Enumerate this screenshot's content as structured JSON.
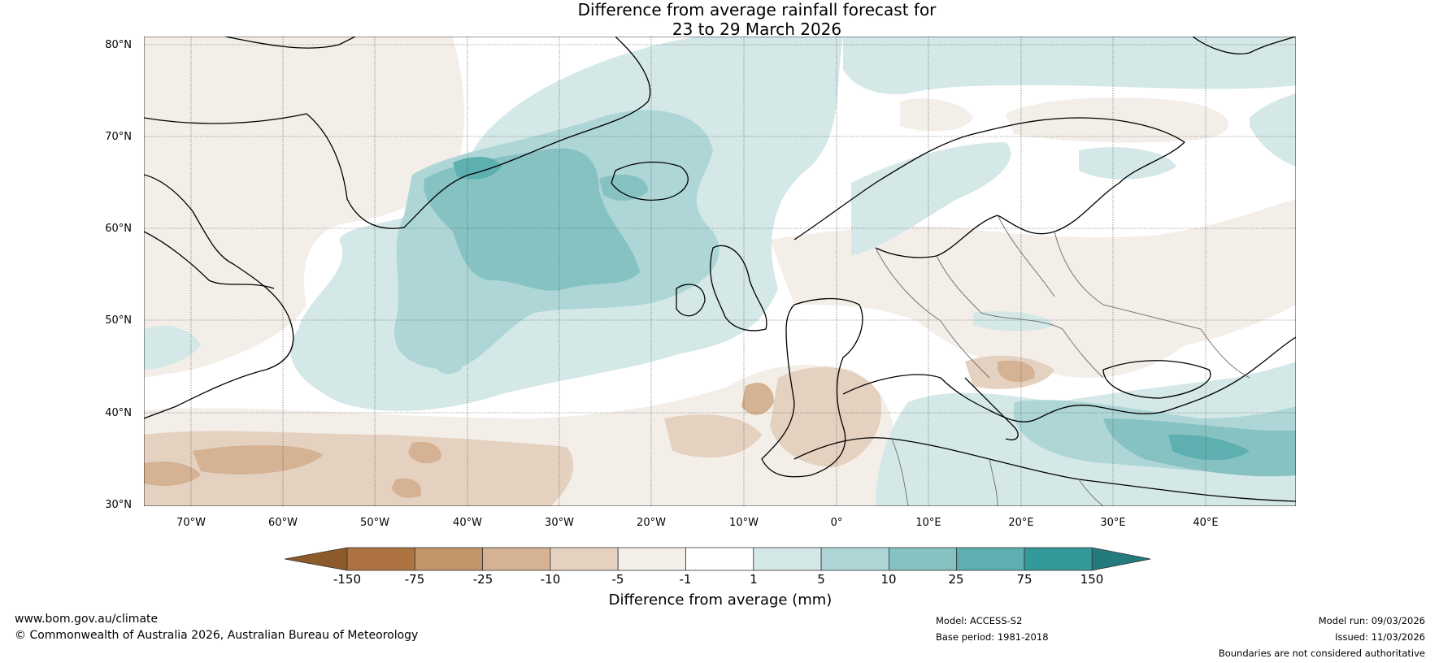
{
  "title": {
    "line1": "Difference from average rainfall forecast for",
    "line2": "23 to 29 March 2026"
  },
  "axes": {
    "lat_labels": [
      "80°N",
      "70°N",
      "60°N",
      "50°N",
      "40°N",
      "30°N"
    ],
    "lon_labels": [
      "70°W",
      "60°W",
      "50°W",
      "40°W",
      "30°W",
      "20°W",
      "10°W",
      "0°",
      "10°E",
      "20°E",
      "30°E",
      "40°E"
    ],
    "lat_range": [
      30,
      80
    ],
    "lon_range": [
      -75,
      50
    ]
  },
  "colorbar": {
    "title": "Difference from average (mm)",
    "boundaries": [
      "-150",
      "-75",
      "-25",
      "-10",
      "-5",
      "-1",
      "1",
      "5",
      "10",
      "25",
      "75",
      "150"
    ],
    "colors": [
      "#8d5a2b",
      "#ad7340",
      "#c1946a",
      "#d4b293",
      "#e5d1c0",
      "#f4eee9",
      "#ffffff",
      "#d4e8e8",
      "#aed6d6",
      "#86c2c2",
      "#5eafaf",
      "#34999a",
      "#237b7b"
    ]
  },
  "footer": {
    "website": "www.bom.gov.au/climate",
    "copyright": "© Commonwealth of Australia 2026, Australian Bureau of Meteorology",
    "model": "Model: ACCESS-S2",
    "base_period": "Base period: 1981-2018",
    "model_run": "Model run: 09/03/2026",
    "issued": "Issued: 11/03/2026",
    "disclaimer": "Boundaries are not considered authoritative"
  }
}
